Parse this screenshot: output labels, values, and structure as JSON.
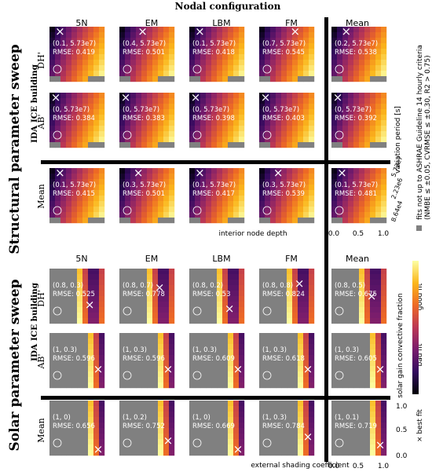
{
  "figure_title": "Nodal configuration",
  "columns": [
    "5N",
    "EM",
    "LBM",
    "FM",
    "Mean"
  ],
  "legend": {
    "gray_text": "fits not up to ASHRAE Guideline 14 hourly criteria",
    "criteria_text": "(NMBE ≤ ±0.05, CVRMSE ≤ ±0.30, R2 > 0.75)",
    "best_fit_text": "× best fit",
    "bad_fit": "bad fit",
    "good_fit": "good fit"
  },
  "colors": {
    "gray": "#808080",
    "separator": "#000000",
    "colormap": [
      "#000004",
      "#320a5e",
      "#781c6d",
      "#bb3754",
      "#ed6925",
      "#fbb61a",
      "#fcffa4"
    ]
  },
  "chart_data": [
    {
      "type": "heatmap",
      "section_title": "Structural parameter sweep",
      "building": "IDA ICE building",
      "rows": [
        "DH'",
        "AB'",
        "Mean"
      ],
      "columns": [
        "5N",
        "EM",
        "LBM",
        "FM",
        "Mean"
      ],
      "xlabel": "interior node depth",
      "xticks": [
        "0.0",
        "0.5",
        "1.0"
      ],
      "ylabel": "variation period [s]",
      "yticks": [
        "8.64e4",
        "2.23e6",
        "5.73e7"
      ],
      "cells": [
        [
          {
            "best": "(0.1, 5.73e7)",
            "rmse": "RMSE: 0.419",
            "bx": 0.1
          },
          {
            "best": "(0.4, 5.73e7)",
            "rmse": "RMSE: 0.501",
            "bx": 0.4
          },
          {
            "best": "(0.1, 5.73e7)",
            "rmse": "RMSE: 0.418",
            "bx": 0.1
          },
          {
            "best": "(0.7, 5.73e7)",
            "rmse": "RMSE: 0.545",
            "bx": 0.7
          },
          {
            "best": "(0.2, 5.73e7)",
            "rmse": "RMSE: 0.538",
            "bx": 0.2
          }
        ],
        [
          {
            "best": "(0, 5.73e7)",
            "rmse": "RMSE: 0.384",
            "bx": 0.0
          },
          {
            "best": "(0, 5.73e7)",
            "rmse": "RMSE: 0.383",
            "bx": 0.0
          },
          {
            "best": "(0, 5.73e7)",
            "rmse": "RMSE: 0.398",
            "bx": 0.0
          },
          {
            "best": "(0, 5.73e7)",
            "rmse": "RMSE: 0.403",
            "bx": 0.0
          },
          {
            "best": "(0, 5.73e7)",
            "rmse": "RMSE: 0.392",
            "bx": 0.0
          }
        ],
        [
          {
            "best": "(0.1, 5.73e7)",
            "rmse": "RMSE: 0.415",
            "bx": 0.1
          },
          {
            "best": "(0.3, 5.73e7)",
            "rmse": "RMSE: 0.501",
            "bx": 0.3
          },
          {
            "best": "(0.1, 5.73e7)",
            "rmse": "RMSE: 0.417",
            "bx": 0.1
          },
          {
            "best": "(0.3, 5.73e7)",
            "rmse": "RMSE: 0.539",
            "bx": 0.3
          },
          {
            "best": "(0.1, 5.73e7)",
            "rmse": "RMSE: 0.481",
            "bx": 0.1
          }
        ]
      ]
    },
    {
      "type": "heatmap",
      "section_title": "Solar parameter sweep",
      "building": "IDA ICE building",
      "rows": [
        "DH'",
        "AB'",
        "Mean"
      ],
      "columns": [
        "5N",
        "EM",
        "LBM",
        "FM",
        "Mean"
      ],
      "xlabel": "external shading coefficient",
      "xticks": [
        "0.0",
        "0.5",
        "1.0"
      ],
      "ylabel": "solar gain convective fraction",
      "yticks": [
        "0.0",
        "0.5",
        "1.0"
      ],
      "cells": [
        [
          {
            "best": "(0.8, 0.3)",
            "rmse": "RMSE: 0.525",
            "bx": 0.8,
            "by": 0.3
          },
          {
            "best": "(0.8, 0.7)",
            "rmse": "RMSE: 0.778",
            "bx": 0.8,
            "by": 0.7
          },
          {
            "best": "(0.8, 0.2)",
            "rmse": "RMSE: 0.53",
            "bx": 0.8,
            "by": 0.2
          },
          {
            "best": "(0.8, 0.8)",
            "rmse": "RMSE: 0.824",
            "bx": 0.8,
            "by": 0.8
          },
          {
            "best": "(0.8, 0.5)",
            "rmse": "RMSE: 0.675",
            "bx": 0.8,
            "by": 0.5
          }
        ],
        [
          {
            "best": "(1, 0.3)",
            "rmse": "RMSE: 0.596",
            "bx": 1.0,
            "by": 0.3
          },
          {
            "best": "(1, 0.3)",
            "rmse": "RMSE: 0.596",
            "bx": 1.0,
            "by": 0.3
          },
          {
            "best": "(1, 0.3)",
            "rmse": "RMSE: 0.609",
            "bx": 1.0,
            "by": 0.3
          },
          {
            "best": "(1, 0.3)",
            "rmse": "RMSE: 0.618",
            "bx": 1.0,
            "by": 0.3
          },
          {
            "best": "(1, 0.3)",
            "rmse": "RMSE: 0.605",
            "bx": 1.0,
            "by": 0.3
          }
        ],
        [
          {
            "best": "(1, 0)",
            "rmse": "RMSE: 0.656",
            "bx": 1.0,
            "by": 0.0
          },
          {
            "best": "(1, 0.2)",
            "rmse": "RMSE: 0.752",
            "bx": 1.0,
            "by": 0.2
          },
          {
            "best": "(1, 0)",
            "rmse": "RMSE: 0.669",
            "bx": 1.0,
            "by": 0.0
          },
          {
            "best": "(1, 0.3)",
            "rmse": "RMSE: 0.784",
            "bx": 1.0,
            "by": 0.3
          },
          {
            "best": "(1, 0.1)",
            "rmse": "RMSE: 0.719",
            "bx": 1.0,
            "by": 0.1
          }
        ]
      ]
    }
  ]
}
